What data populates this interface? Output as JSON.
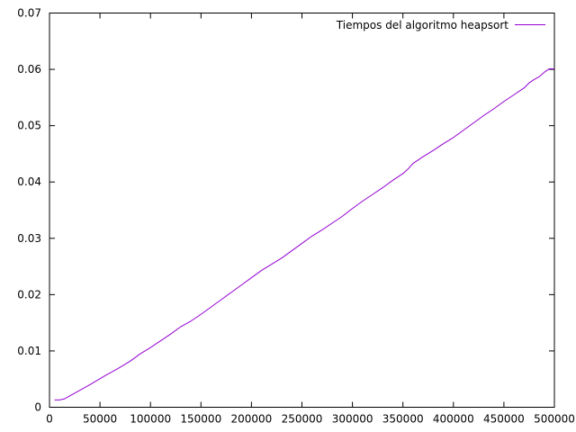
{
  "chart_data": {
    "type": "line",
    "title": "",
    "xlabel": "",
    "ylabel": "",
    "xlim": [
      0,
      500000
    ],
    "ylim": [
      0,
      0.07
    ],
    "x_ticks": [
      0,
      50000,
      100000,
      150000,
      200000,
      250000,
      300000,
      350000,
      400000,
      450000,
      500000
    ],
    "x_tick_labels": [
      "0",
      "50000",
      "100000",
      "150000",
      "200000",
      "250000",
      "300000",
      "350000",
      "400000",
      "450000",
      "500000"
    ],
    "y_ticks": [
      0,
      0.01,
      0.02,
      0.03,
      0.04,
      0.05,
      0.06,
      0.07
    ],
    "y_tick_labels": [
      "0",
      "0.01",
      "0.02",
      "0.03",
      "0.04",
      "0.05",
      "0.06",
      "0.07"
    ],
    "grid": false,
    "legend_position": "top-right",
    "series": [
      {
        "name": "Tiempos del algoritmo heapsort",
        "color": "#9400d3",
        "x": [
          5000,
          10000,
          15000,
          25000,
          40000,
          55000,
          70000,
          80000,
          90000,
          100000,
          110000,
          120000,
          130000,
          140000,
          150000,
          160000,
          170000,
          180000,
          190000,
          200000,
          210000,
          220000,
          230000,
          240000,
          250000,
          260000,
          270000,
          280000,
          290000,
          300000,
          310000,
          320000,
          330000,
          340000,
          350000,
          355000,
          360000,
          370000,
          380000,
          390000,
          400000,
          410000,
          420000,
          430000,
          440000,
          450000,
          460000,
          470000,
          475000,
          480000,
          485000,
          490000,
          495000,
          500000
        ],
        "values": [
          0.0013,
          0.0013,
          0.0015,
          0.0025,
          0.004,
          0.0056,
          0.0071,
          0.0082,
          0.0095,
          0.0106,
          0.0118,
          0.013,
          0.0143,
          0.0153,
          0.0165,
          0.0178,
          0.0191,
          0.0204,
          0.0217,
          0.023,
          0.0243,
          0.0254,
          0.0265,
          0.0278,
          0.0291,
          0.0304,
          0.0315,
          0.0327,
          0.0339,
          0.0353,
          0.0366,
          0.0378,
          0.039,
          0.0403,
          0.0415,
          0.0423,
          0.0433,
          0.0445,
          0.0456,
          0.0468,
          0.0479,
          0.0492,
          0.0505,
          0.0518,
          0.053,
          0.0543,
          0.0555,
          0.0567,
          0.0576,
          0.0582,
          0.0587,
          0.0595,
          0.0601,
          0.0601
        ]
      }
    ]
  }
}
